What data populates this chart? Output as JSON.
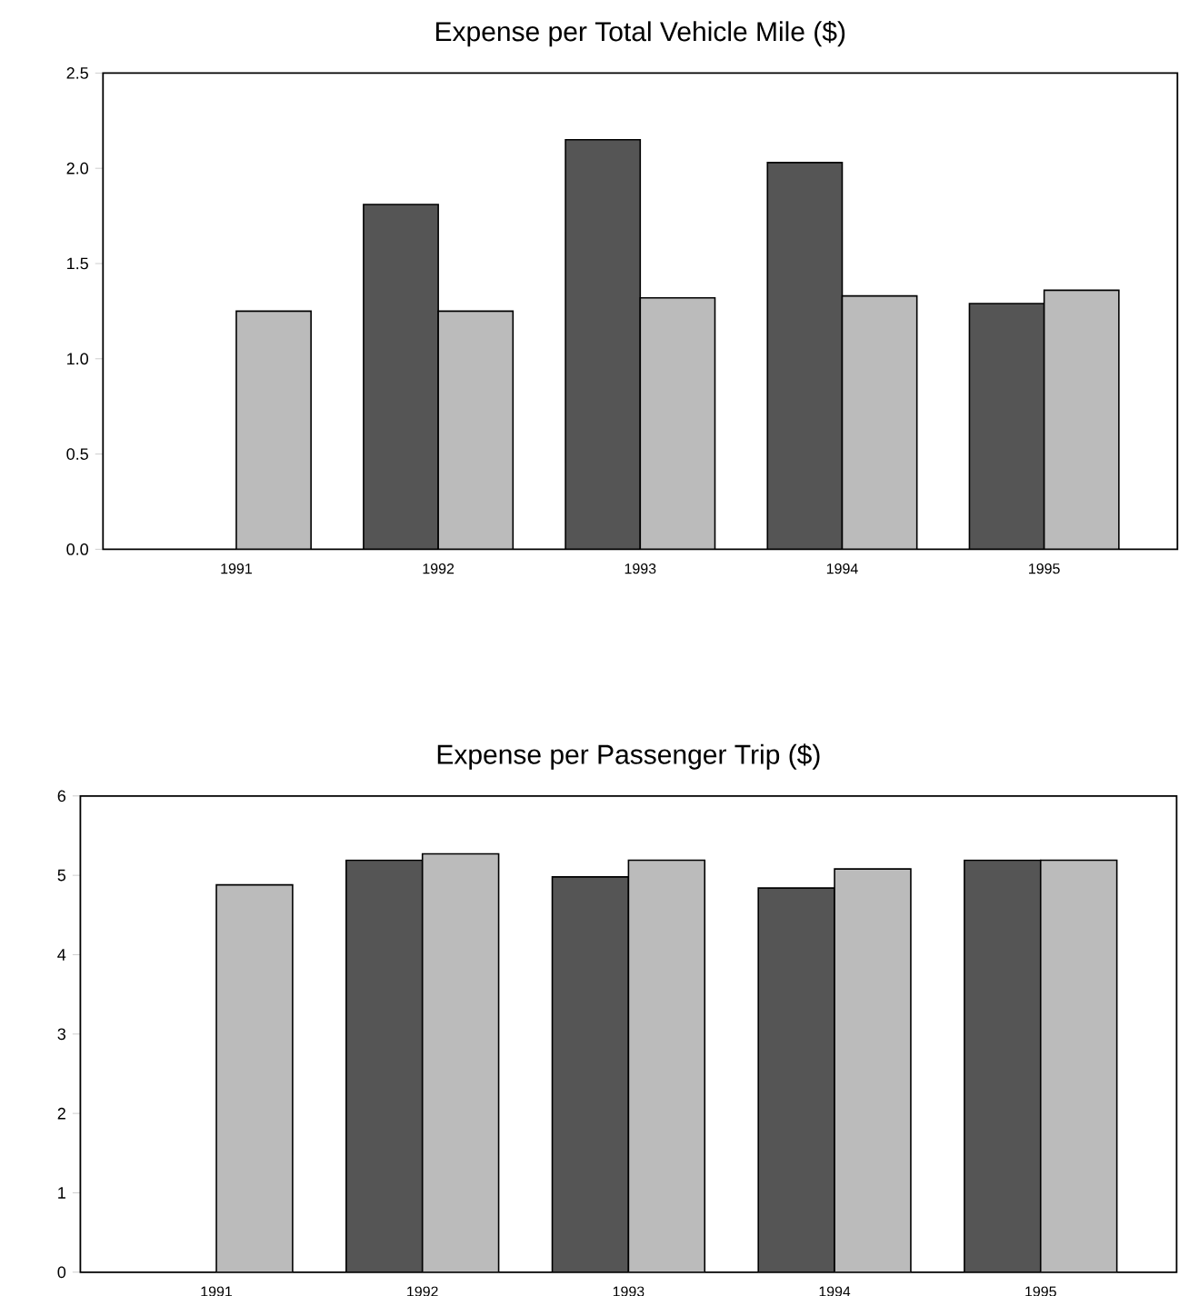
{
  "chart_data": [
    {
      "type": "bar",
      "title": "Expense per Total Vehicle Mile ($)",
      "categories": [
        "1991",
        "1992",
        "1993",
        "1994",
        "1995"
      ],
      "series": [
        {
          "color": "#555555",
          "values": [
            null,
            1.81,
            2.15,
            2.03,
            1.29
          ]
        },
        {
          "color": "#bbbbbb",
          "values": [
            1.25,
            1.25,
            1.32,
            1.33,
            1.36
          ]
        }
      ],
      "ylim": [
        0,
        2.5
      ],
      "yticks": [
        {
          "value": 0,
          "label": "0.0"
        },
        0.5,
        {
          "value": 1,
          "label": "1.0"
        },
        1.5,
        {
          "value": 2,
          "label": "2.0"
        },
        2.5
      ],
      "grid": false
    },
    {
      "type": "bar",
      "title": "Expense per Passenger Trip ($)",
      "categories": [
        "1991",
        "1992",
        "1993",
        "1994",
        "1995"
      ],
      "series": [
        {
          "color": "#555555",
          "values": [
            null,
            5.19,
            4.98,
            4.84,
            5.19
          ]
        },
        {
          "color": "#bbbbbb",
          "values": [
            4.88,
            5.27,
            5.19,
            5.08,
            5.19
          ]
        }
      ],
      "ylim": [
        0,
        6
      ],
      "yticks": [
        0,
        1,
        2,
        3,
        4,
        5,
        6
      ],
      "grid": false
    }
  ]
}
